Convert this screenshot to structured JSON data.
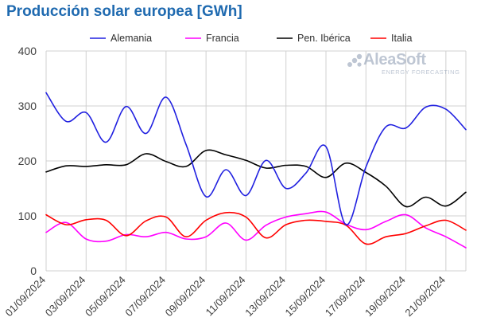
{
  "chart_data": {
    "type": "line",
    "title": "Producción solar europea [GWh]",
    "xlabel": "",
    "ylabel": "",
    "ylim": [
      0,
      400
    ],
    "yticks": [
      0,
      100,
      200,
      300,
      400
    ],
    "grid": true,
    "legend_position": "top",
    "x": [
      "01/09/2024",
      "02/09/2024",
      "03/09/2024",
      "04/09/2024",
      "05/09/2024",
      "06/09/2024",
      "07/09/2024",
      "08/09/2024",
      "09/09/2024",
      "10/09/2024",
      "11/09/2024",
      "12/09/2024",
      "13/09/2024",
      "14/09/2024",
      "15/09/2024",
      "16/09/2024",
      "17/09/2024",
      "18/09/2024",
      "19/09/2024",
      "20/09/2024",
      "21/09/2024",
      "22/09/2024"
    ],
    "xtick_labels": [
      "01/09/2024",
      "03/09/2024",
      "05/09/2024",
      "07/09/2024",
      "09/09/2024",
      "11/09/2024",
      "13/09/2024",
      "15/09/2024",
      "17/09/2024",
      "19/09/2024",
      "21/09/2024"
    ],
    "series": [
      {
        "name": "Alemania",
        "color": "#2020e0",
        "values": [
          324,
          272,
          288,
          234,
          299,
          250,
          316,
          230,
          135,
          184,
          137,
          201,
          150,
          178,
          226,
          84,
          189,
          262,
          260,
          298,
          294,
          257
        ]
      },
      {
        "name": "Francia",
        "color": "#ff00ff",
        "values": [
          70,
          88,
          58,
          54,
          66,
          62,
          70,
          58,
          62,
          87,
          56,
          83,
          98,
          104,
          107,
          85,
          75,
          90,
          102,
          78,
          62,
          42
        ]
      },
      {
        "name": "Pen. Ibérica",
        "color": "#000000",
        "values": [
          180,
          191,
          190,
          193,
          193,
          213,
          199,
          190,
          219,
          211,
          201,
          187,
          192,
          190,
          170,
          196,
          179,
          154,
          117,
          134,
          118,
          143
        ]
      },
      {
        "name": "Italia",
        "color": "#ff0000",
        "values": [
          102,
          84,
          93,
          92,
          64,
          91,
          98,
          62,
          92,
          106,
          98,
          60,
          84,
          92,
          90,
          83,
          49,
          62,
          68,
          82,
          92,
          74
        ]
      }
    ]
  },
  "logo": {
    "word": "AleaSoft",
    "sub": "ENERGY FORECASTING"
  }
}
